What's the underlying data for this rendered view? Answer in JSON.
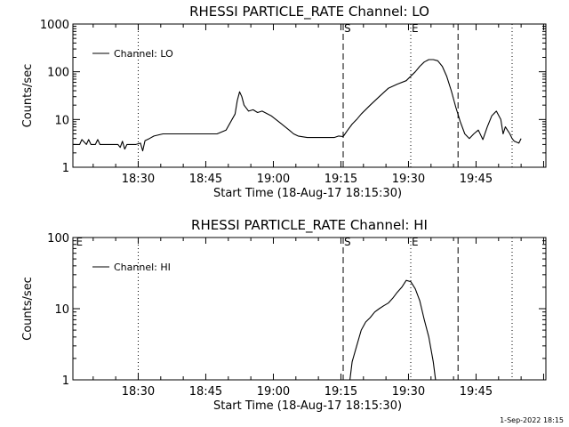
{
  "footer": "1-Sep-2022 18:15",
  "chart_data": [
    {
      "type": "line",
      "title": "RHESSI PARTICLE_RATE Channel: LO",
      "xlabel": "Start Time (18-Aug-17 18:15:30)",
      "ylabel": "Counts/sec",
      "x_unit": "minutes since 18:15:30",
      "xlim": [
        0,
        105
      ],
      "ylim": [
        1,
        1000
      ],
      "yscale": "log",
      "x_tick_labels": [
        "18:30",
        "18:45",
        "19:00",
        "19:15",
        "19:30",
        "19:45"
      ],
      "x_tick_values": [
        14.5,
        29.5,
        44.5,
        59.5,
        74.5,
        89.5
      ],
      "y_tick_labels": [
        "1",
        "10",
        "100",
        "1000"
      ],
      "y_tick_values": [
        1,
        10,
        100,
        1000
      ],
      "legend": {
        "location": "top-left",
        "entries": [
          "Channel: LO"
        ]
      },
      "series": [
        {
          "name": "Channel: LO",
          "x": [
            0,
            1.5,
            2,
            3,
            3.5,
            4,
            5,
            5.5,
            6,
            7,
            8,
            9,
            10,
            10.5,
            11,
            11.5,
            12,
            13,
            14,
            15,
            15.5,
            16,
            17,
            18,
            20,
            22,
            25,
            28,
            30,
            32,
            34,
            36,
            36.5,
            37,
            37.5,
            38,
            39,
            40,
            41,
            42,
            44,
            46,
            48,
            49,
            50,
            52,
            54,
            56,
            58,
            59,
            60,
            61,
            62,
            63,
            64,
            66,
            68,
            70,
            72,
            74,
            76,
            77,
            78,
            79,
            80,
            81,
            82,
            83,
            84,
            85,
            86,
            87,
            88,
            89,
            90,
            91,
            92,
            93,
            94,
            95,
            95.5,
            96,
            97,
            97.5,
            98,
            99,
            99.5
          ],
          "y": [
            3,
            3,
            3.8,
            3,
            3.8,
            3,
            3,
            3.8,
            3,
            3,
            3,
            3,
            3,
            2.6,
            3.5,
            2.4,
            3,
            3,
            3,
            3.2,
            2.2,
            3.6,
            4,
            4.5,
            5,
            5,
            5,
            5,
            5,
            5,
            6,
            13,
            25,
            38,
            30,
            20,
            15,
            16,
            14,
            15,
            12,
            8.5,
            6,
            5,
            4.5,
            4.2,
            4.2,
            4.2,
            4.2,
            4.5,
            4.4,
            6,
            8,
            10,
            13,
            20,
            30,
            45,
            55,
            65,
            100,
            130,
            160,
            180,
            180,
            170,
            130,
            80,
            40,
            18,
            9,
            5,
            4,
            5,
            6,
            3.8,
            7,
            12,
            15,
            10,
            5,
            7,
            5,
            4,
            3.5,
            3.2,
            4
          ]
        }
      ],
      "markers": [
        {
          "label": "",
          "x": 14.5,
          "style": "dotted"
        },
        {
          "label": "S",
          "x": 60,
          "style": "dashed"
        },
        {
          "label": "E",
          "x": 75,
          "style": "dotted"
        },
        {
          "label": "",
          "x": 85.5,
          "style": "dashed"
        },
        {
          "label": "",
          "x": 97.5,
          "style": "dotted"
        }
      ]
    },
    {
      "type": "line",
      "title": "RHESSI PARTICLE_RATE Channel: HI",
      "xlabel": "Start Time (18-Aug-17 18:15:30)",
      "ylabel": "Counts/sec",
      "x_unit": "minutes since 18:15:30",
      "xlim": [
        0,
        105
      ],
      "ylim": [
        1,
        100
      ],
      "yscale": "log",
      "x_tick_labels": [
        "18:30",
        "18:45",
        "19:00",
        "19:15",
        "19:30",
        "19:45"
      ],
      "x_tick_values": [
        14.5,
        29.5,
        44.5,
        59.5,
        74.5,
        89.5
      ],
      "y_tick_labels": [
        "1",
        "10",
        "100"
      ],
      "y_tick_values": [
        1,
        10,
        100
      ],
      "legend": {
        "location": "top-left",
        "entries": [
          "Channel: HI"
        ]
      },
      "series": [
        {
          "name": "Channel: HI",
          "x": [
            61.5,
            62,
            63,
            64,
            65,
            66,
            67,
            68,
            69,
            70,
            71,
            72,
            73,
            74,
            75,
            76,
            77,
            78,
            79,
            80,
            80.5
          ],
          "y": [
            1,
            1.8,
            3,
            5,
            6.5,
            7.5,
            9,
            10,
            11,
            12,
            14,
            17,
            20,
            25,
            24,
            19,
            13,
            7,
            4,
            1.8,
            1
          ]
        }
      ],
      "markers": [
        {
          "label": "E",
          "x": 0.5,
          "style": "none"
        },
        {
          "label": "",
          "x": 14.5,
          "style": "dotted"
        },
        {
          "label": "S",
          "x": 60,
          "style": "dashed"
        },
        {
          "label": "E",
          "x": 75,
          "style": "dotted"
        },
        {
          "label": "",
          "x": 85.5,
          "style": "dashed"
        },
        {
          "label": "",
          "x": 97.5,
          "style": "dotted"
        }
      ]
    }
  ]
}
